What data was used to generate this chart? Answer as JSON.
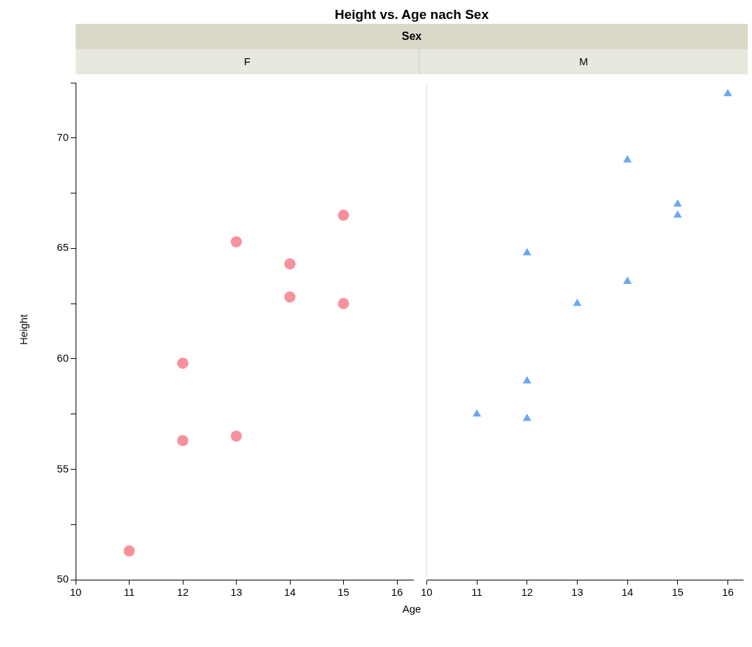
{
  "chart_data": [
    {
      "type": "scatter",
      "title": "Height vs. Age nach Sex",
      "annotations": [
        "Sex"
      ],
      "subtitle": "F",
      "xlabel": "Age",
      "ylabel": "Height",
      "marker": "circle",
      "grid": false,
      "legend": false,
      "x": [
        13,
        13,
        14,
        12,
        15,
        11,
        14,
        12,
        15
      ],
      "series": [
        {
          "color": "#f7929c",
          "values": [
            56.5,
            65.3,
            62.8,
            59.8,
            62.5,
            51.3,
            64.3,
            56.3,
            66.5
          ]
        }
      ],
      "xlim": [
        10,
        16.3
      ],
      "xticks": [
        10,
        11,
        12,
        13,
        14,
        15,
        16
      ],
      "ylim": [
        50,
        72.5
      ],
      "yticks": [
        50,
        {
          "value": 52.5,
          "label": null
        },
        55,
        {
          "value": 57.5,
          "label": null
        },
        60,
        {
          "value": 62.5,
          "label": null
        },
        65,
        {
          "value": 67.5,
          "label": null
        },
        70,
        {
          "value": 72.5,
          "label": null
        }
      ]
    },
    {
      "type": "scatter",
      "subtitle": "M",
      "marker": "triangle",
      "grid": false,
      "legend": false,
      "tick_labels": "x",
      "x": [
        14,
        14,
        12,
        13,
        12,
        16,
        12,
        15,
        11,
        15
      ],
      "series": [
        {
          "color": "#6aa8f2",
          "values": [
            69.0,
            63.5,
            57.3,
            62.5,
            59.0,
            72.0,
            64.8,
            67.0,
            57.5,
            66.5
          ]
        }
      ],
      "xlim": [
        10,
        16.3
      ],
      "xticks": [
        10,
        11,
        12,
        13,
        14,
        15,
        16
      ],
      "ylim": [
        50,
        72.5
      ]
    }
  ]
}
